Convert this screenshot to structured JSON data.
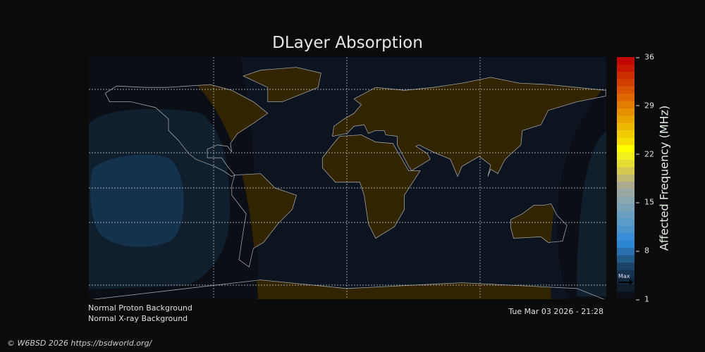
{
  "title": "DLayer Absorption",
  "colorbar": {
    "label": "Affected Frequency (MHz)",
    "ticks": [
      "36",
      "29",
      "22",
      "15",
      "8",
      "1"
    ],
    "range": [
      1,
      36
    ],
    "max_marker_label": "Max",
    "colors": [
      "#0c0f16",
      "#0f1c2c",
      "#13273c",
      "#183250",
      "#1d4468",
      "#225a8a",
      "#2a6fae",
      "#2d86d0",
      "#3a8ed6",
      "#4a94cc",
      "#5a9ac6",
      "#6a9fc0",
      "#7aa3b8",
      "#8aa6ae",
      "#9aa8a4",
      "#aaaa90",
      "#c0b870",
      "#d4c850",
      "#e6dc36",
      "#f2ee20",
      "#ffff00",
      "#f6dc00",
      "#f0cc00",
      "#ecb800",
      "#e8a400",
      "#e69000",
      "#e27c00",
      "#de6800",
      "#d85400",
      "#d24000",
      "#cc2c00",
      "#c61800",
      "#c00800"
    ]
  },
  "status": {
    "proton": "Normal Proton Background",
    "xray": "Normal X-ray Background",
    "timestamp": "Tue Mar 03 2026 - 21:28"
  },
  "footer": {
    "copyright": "© W6BSD 2026 https://bsdworld.org/"
  },
  "map_colors": {
    "background": "#0c1420",
    "night": "#0b0e14",
    "land_day": "#332400",
    "coast": "#a0a0a0",
    "absorption_low": "#0f1f2e",
    "absorption_mid": "#15324c"
  }
}
